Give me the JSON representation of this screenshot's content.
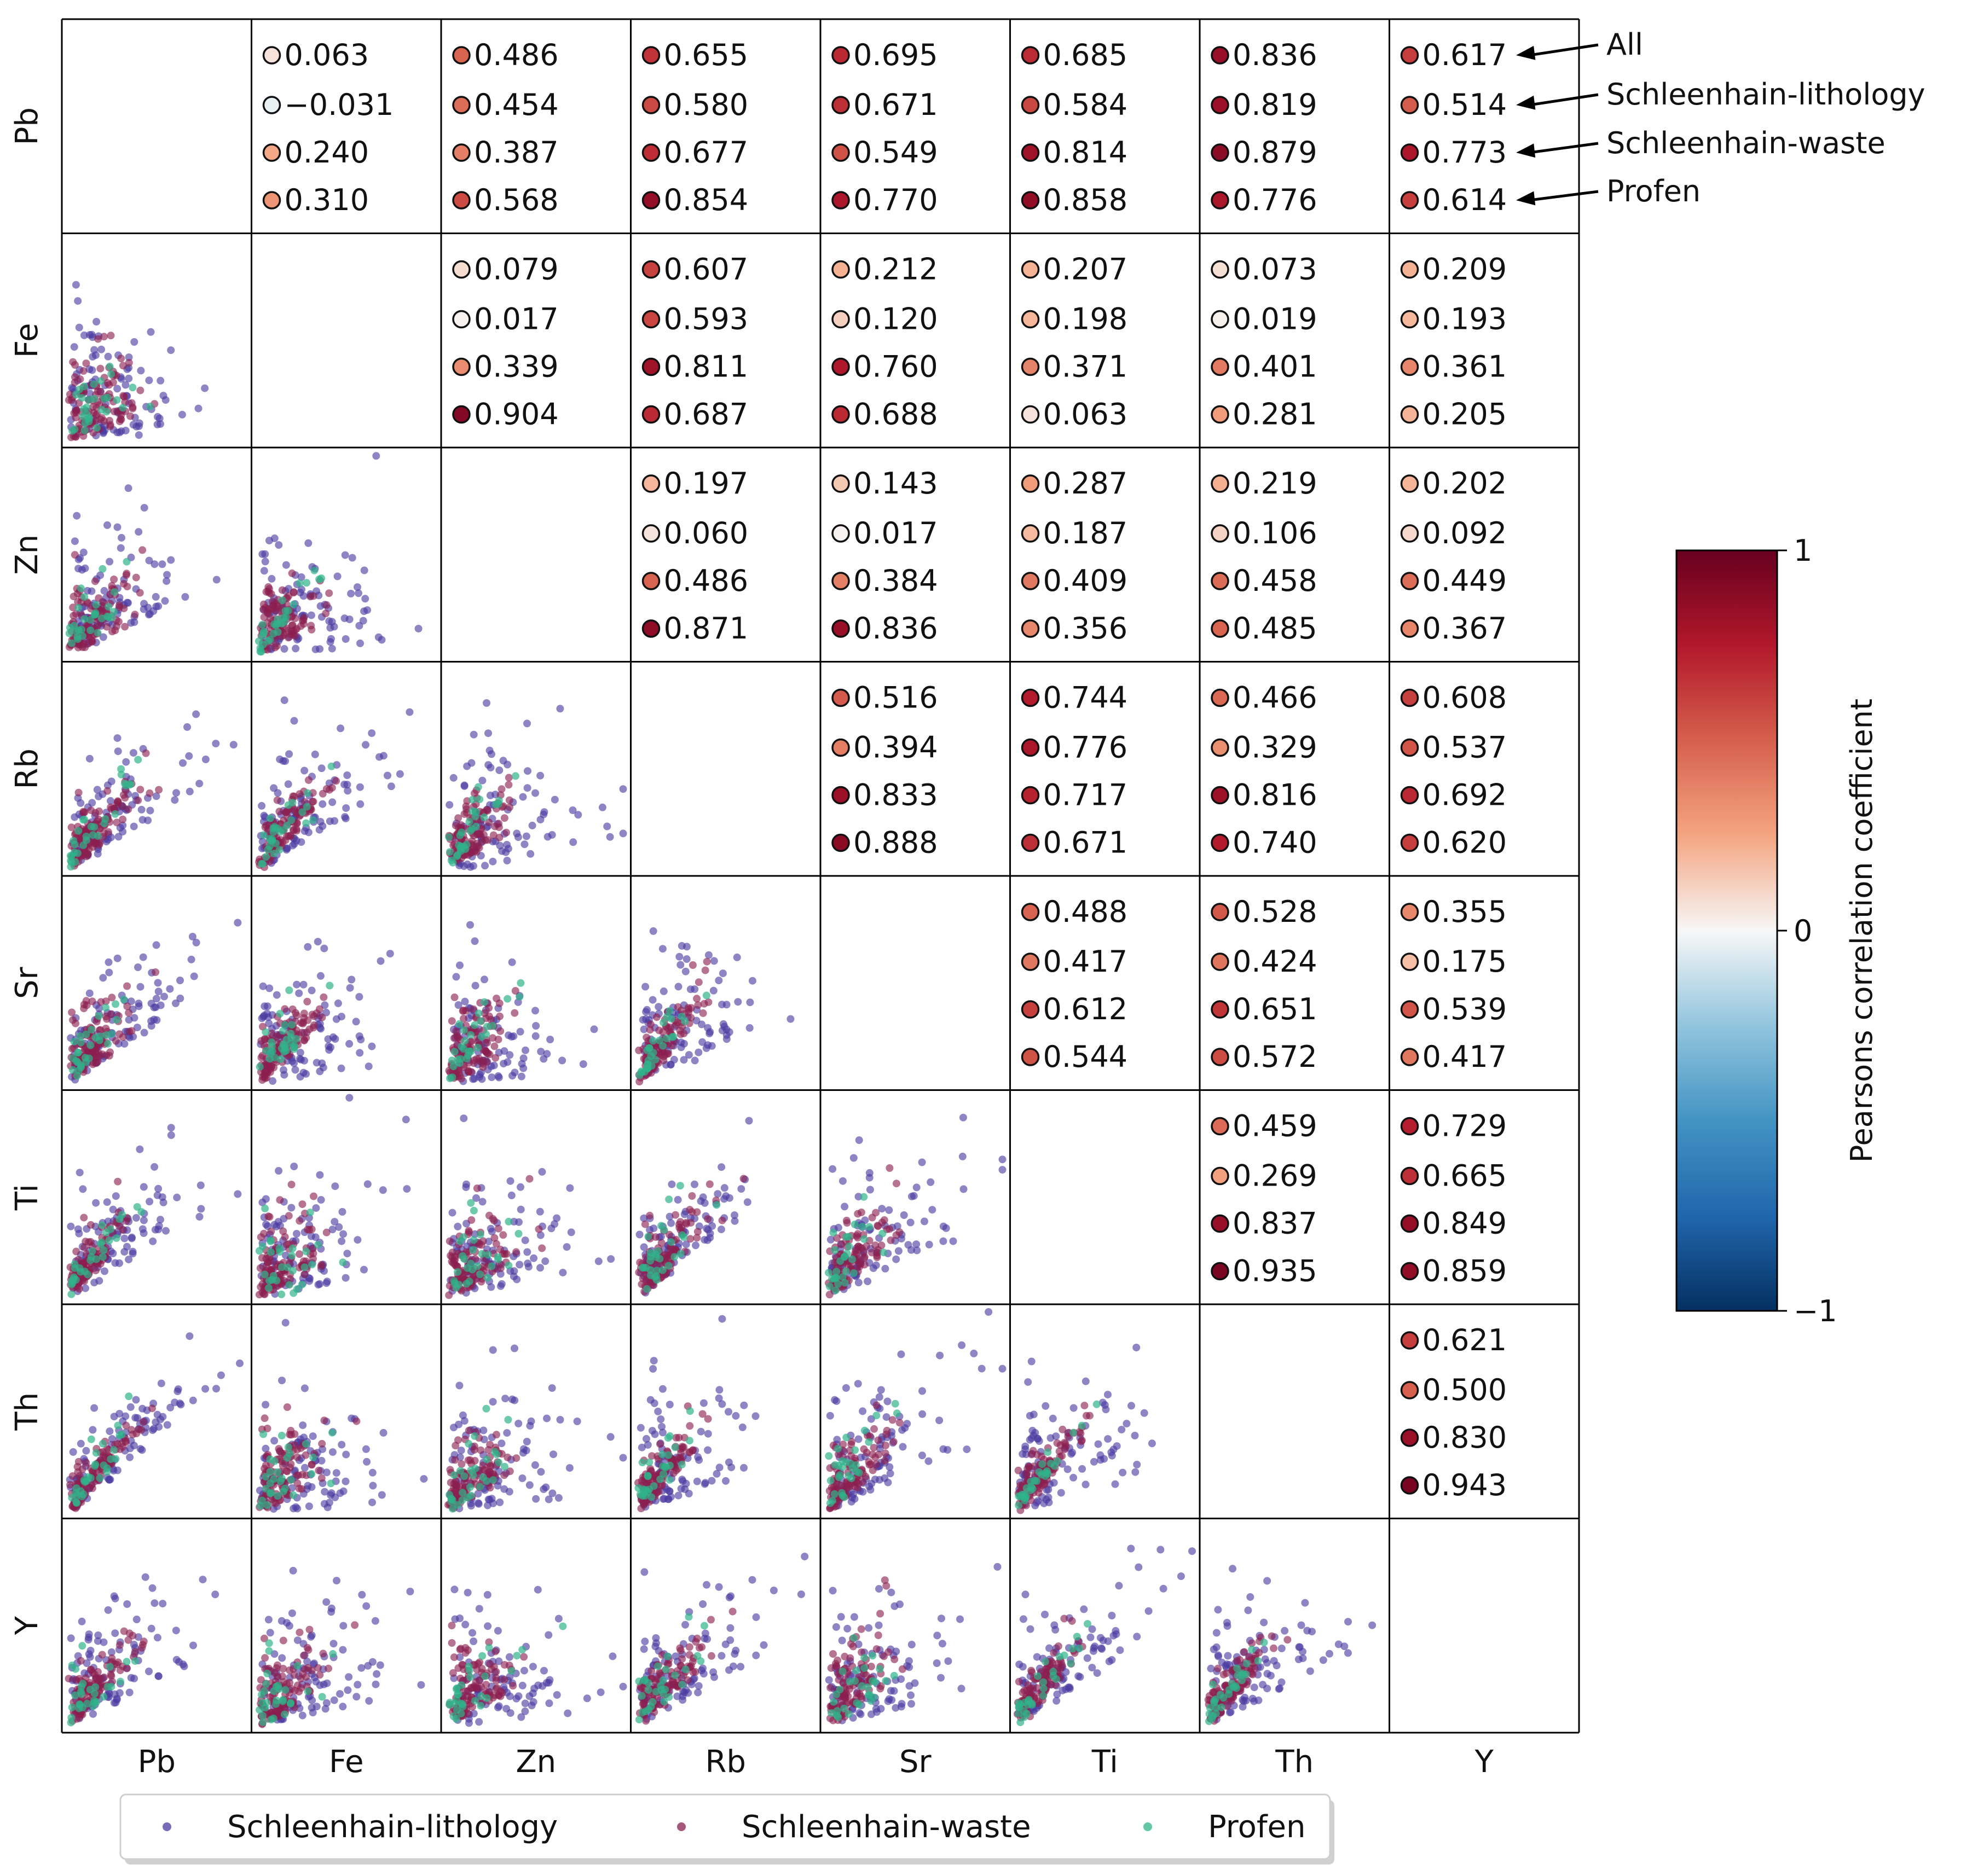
{
  "chart_data": {
    "type": "scatter",
    "subtype": "pair-plot correlation matrix",
    "variables": [
      "Pb",
      "Fe",
      "Zn",
      "Rb",
      "Sr",
      "Ti",
      "Th",
      "Y"
    ],
    "group_labels": [
      "All",
      "Schleenhain-lithology",
      "Schleenhain-waste",
      "Profen"
    ],
    "legend": {
      "placement": "bottom",
      "entries": [
        {
          "name": "Schleenhain-lithology",
          "color": "#4b3aa0"
        },
        {
          "name": "Schleenhain-waste",
          "color": "#8a1f4f"
        },
        {
          "name": "Profen",
          "color": "#2fb38a"
        }
      ]
    },
    "colorbar": {
      "label": "Pearsons correlation coefficient",
      "range": [
        -1,
        1
      ],
      "ticks": [
        1,
        0,
        -1
      ],
      "tick_labels": [
        "1",
        "0",
        "−1"
      ]
    },
    "correlations": [
      {
        "row": "Pb",
        "col": "Fe",
        "values": [
          0.063,
          -0.031,
          0.24,
          0.31
        ],
        "labels": [
          "0.063",
          "−0.031",
          "0.240",
          "0.310"
        ]
      },
      {
        "row": "Pb",
        "col": "Zn",
        "values": [
          0.486,
          0.454,
          0.387,
          0.568
        ],
        "labels": [
          "0.486",
          "0.454",
          "0.387",
          "0.568"
        ]
      },
      {
        "row": "Pb",
        "col": "Rb",
        "values": [
          0.655,
          0.58,
          0.677,
          0.854
        ],
        "labels": [
          "0.655",
          "0.580",
          "0.677",
          "0.854"
        ]
      },
      {
        "row": "Pb",
        "col": "Sr",
        "values": [
          0.695,
          0.671,
          0.549,
          0.77
        ],
        "labels": [
          "0.695",
          "0.671",
          "0.549",
          "0.770"
        ]
      },
      {
        "row": "Pb",
        "col": "Ti",
        "values": [
          0.685,
          0.584,
          0.814,
          0.858
        ],
        "labels": [
          "0.685",
          "0.584",
          "0.814",
          "0.858"
        ]
      },
      {
        "row": "Pb",
        "col": "Th",
        "values": [
          0.836,
          0.819,
          0.879,
          0.776
        ],
        "labels": [
          "0.836",
          "0.819",
          "0.879",
          "0.776"
        ]
      },
      {
        "row": "Pb",
        "col": "Y",
        "values": [
          0.617,
          0.514,
          0.773,
          0.614
        ],
        "labels": [
          "0.617",
          "0.514",
          "0.773",
          "0.614"
        ]
      },
      {
        "row": "Fe",
        "col": "Zn",
        "values": [
          0.079,
          0.017,
          0.339,
          0.904
        ],
        "labels": [
          "0.079",
          "0.017",
          "0.339",
          "0.904"
        ]
      },
      {
        "row": "Fe",
        "col": "Rb",
        "values": [
          0.607,
          0.593,
          0.811,
          0.687
        ],
        "labels": [
          "0.607",
          "0.593",
          "0.811",
          "0.687"
        ]
      },
      {
        "row": "Fe",
        "col": "Sr",
        "values": [
          0.212,
          0.12,
          0.76,
          0.688
        ],
        "labels": [
          "0.212",
          "0.120",
          "0.760",
          "0.688"
        ]
      },
      {
        "row": "Fe",
        "col": "Ti",
        "values": [
          0.207,
          0.198,
          0.371,
          0.063
        ],
        "labels": [
          "0.207",
          "0.198",
          "0.371",
          "0.063"
        ]
      },
      {
        "row": "Fe",
        "col": "Th",
        "values": [
          0.073,
          0.019,
          0.401,
          0.281
        ],
        "labels": [
          "0.073",
          "0.019",
          "0.401",
          "0.281"
        ]
      },
      {
        "row": "Fe",
        "col": "Y",
        "values": [
          0.209,
          0.193,
          0.361,
          0.205
        ],
        "labels": [
          "0.209",
          "0.193",
          "0.361",
          "0.205"
        ]
      },
      {
        "row": "Zn",
        "col": "Rb",
        "values": [
          0.197,
          0.06,
          0.486,
          0.871
        ],
        "labels": [
          "0.197",
          "0.060",
          "0.486",
          "0.871"
        ]
      },
      {
        "row": "Zn",
        "col": "Sr",
        "values": [
          0.143,
          0.017,
          0.384,
          0.836
        ],
        "labels": [
          "0.143",
          "0.017",
          "0.384",
          "0.836"
        ]
      },
      {
        "row": "Zn",
        "col": "Ti",
        "values": [
          0.287,
          0.187,
          0.409,
          0.356
        ],
        "labels": [
          "0.287",
          "0.187",
          "0.409",
          "0.356"
        ]
      },
      {
        "row": "Zn",
        "col": "Th",
        "values": [
          0.219,
          0.106,
          0.458,
          0.485
        ],
        "labels": [
          "0.219",
          "0.106",
          "0.458",
          "0.485"
        ]
      },
      {
        "row": "Zn",
        "col": "Y",
        "values": [
          0.202,
          0.092,
          0.449,
          0.367
        ],
        "labels": [
          "0.202",
          "0.092",
          "0.449",
          "0.367"
        ]
      },
      {
        "row": "Rb",
        "col": "Sr",
        "values": [
          0.516,
          0.394,
          0.833,
          0.888
        ],
        "labels": [
          "0.516",
          "0.394",
          "0.833",
          "0.888"
        ]
      },
      {
        "row": "Rb",
        "col": "Ti",
        "values": [
          0.744,
          0.776,
          0.717,
          0.671
        ],
        "labels": [
          "0.744",
          "0.776",
          "0.717",
          "0.671"
        ]
      },
      {
        "row": "Rb",
        "col": "Th",
        "values": [
          0.466,
          0.329,
          0.816,
          0.74
        ],
        "labels": [
          "0.466",
          "0.329",
          "0.816",
          "0.740"
        ]
      },
      {
        "row": "Rb",
        "col": "Y",
        "values": [
          0.608,
          0.537,
          0.692,
          0.62
        ],
        "labels": [
          "0.608",
          "0.537",
          "0.692",
          "0.620"
        ]
      },
      {
        "row": "Sr",
        "col": "Ti",
        "values": [
          0.488,
          0.417,
          0.612,
          0.544
        ],
        "labels": [
          "0.488",
          "0.417",
          "0.612",
          "0.544"
        ]
      },
      {
        "row": "Sr",
        "col": "Th",
        "values": [
          0.528,
          0.424,
          0.651,
          0.572
        ],
        "labels": [
          "0.528",
          "0.424",
          "0.651",
          "0.572"
        ]
      },
      {
        "row": "Sr",
        "col": "Y",
        "values": [
          0.355,
          0.175,
          0.539,
          0.417
        ],
        "labels": [
          "0.355",
          "0.175",
          "0.539",
          "0.417"
        ]
      },
      {
        "row": "Ti",
        "col": "Th",
        "values": [
          0.459,
          0.269,
          0.837,
          0.935
        ],
        "labels": [
          "0.459",
          "0.269",
          "0.837",
          "0.935"
        ]
      },
      {
        "row": "Ti",
        "col": "Y",
        "values": [
          0.729,
          0.665,
          0.849,
          0.859
        ],
        "labels": [
          "0.729",
          "0.665",
          "0.849",
          "0.859"
        ]
      },
      {
        "row": "Th",
        "col": "Y",
        "values": [
          0.621,
          0.5,
          0.83,
          0.943
        ],
        "labels": [
          "0.621",
          "0.500",
          "0.830",
          "0.943"
        ]
      }
    ],
    "scatter_series": [
      "Schleenhain-lithology",
      "Schleenhain-waste",
      "Profen"
    ],
    "scatter_point_values": "individual sample values are not labeled in the image; scatter panels are reproduced schematically from the correlation structure"
  }
}
